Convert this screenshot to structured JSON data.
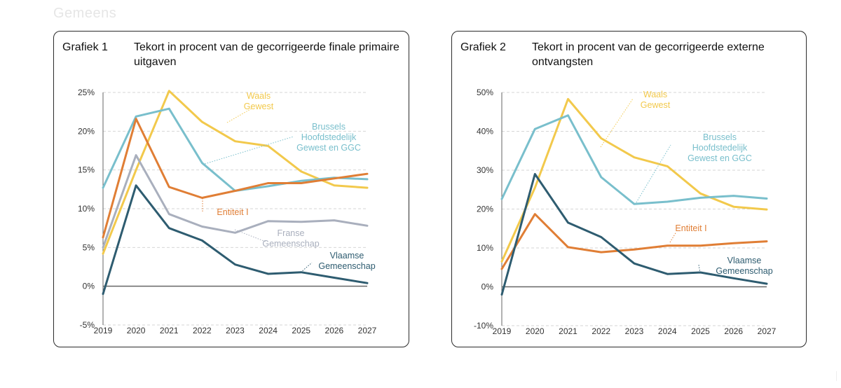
{
  "page": {
    "header_faded": "Gemeens"
  },
  "chart_data": [
    {
      "type": "line",
      "label": "Grafiek 1",
      "title": "Tekort in procent van de gecorrigeerde finale primaire uitgaven",
      "x": [
        "2019",
        "2020",
        "2021",
        "2022",
        "2023",
        "2024",
        "2025",
        "2026",
        "2027"
      ],
      "ylim": [
        -5,
        25
      ],
      "yticks": [
        -5,
        0,
        5,
        10,
        15,
        20,
        25
      ],
      "ytick_labels": [
        "-5%",
        "0%",
        "5%",
        "10%",
        "15%",
        "20%",
        "25%"
      ],
      "grid": true,
      "series": [
        {
          "name": "Waals Gewest",
          "label_lines": [
            "Waals",
            "Gewest"
          ],
          "color": "#f2c94c",
          "values": [
            4.2,
            15.0,
            25.2,
            21.2,
            18.7,
            18.1,
            14.8,
            13.0,
            12.7
          ]
        },
        {
          "name": "Brussels Hoofdstedelijk Gewest en GGC",
          "label_lines": [
            "Brussels",
            "Hoofdstedelijk",
            "Gewest en GGC"
          ],
          "color": "#79bfcc",
          "values": [
            12.7,
            21.9,
            22.9,
            15.9,
            12.3,
            12.9,
            13.6,
            14.0,
            13.8
          ]
        },
        {
          "name": "Entiteit I",
          "label_lines": [
            "Entiteit I"
          ],
          "color": "#e07e35",
          "values": [
            6.3,
            21.6,
            12.8,
            11.4,
            12.3,
            13.3,
            13.3,
            13.9,
            14.5
          ]
        },
        {
          "name": "Franse Gemeenschap",
          "label_lines": [
            "Franse",
            "Gemeenschap"
          ],
          "color": "#a9afbd",
          "values": [
            5.0,
            16.9,
            9.3,
            7.7,
            6.9,
            8.4,
            8.3,
            8.5,
            7.8
          ]
        },
        {
          "name": "Vlaamse Gemeenschap",
          "label_lines": [
            "Vlaamse",
            "Gemeenschap"
          ],
          "color": "#2e5c70",
          "values": [
            -1.0,
            13.0,
            7.5,
            5.9,
            2.8,
            1.6,
            1.8,
            1.1,
            0.4
          ]
        }
      ]
    },
    {
      "type": "line",
      "label": "Grafiek 2",
      "title": "Tekort in procent van de gecorrigeerde externe ontvangsten",
      "x": [
        "2019",
        "2020",
        "2021",
        "2022",
        "2023",
        "2024",
        "2025",
        "2026",
        "2027"
      ],
      "ylim": [
        -10,
        50
      ],
      "yticks": [
        -10,
        0,
        10,
        20,
        30,
        40,
        50
      ],
      "ytick_labels": [
        "-10%",
        "0%",
        "10%",
        "20%",
        "30%",
        "40%",
        "50%"
      ],
      "grid": true,
      "series": [
        {
          "name": "Waals Gewest",
          "label_lines": [
            "Waals",
            "Gewest"
          ],
          "color": "#f2c94c",
          "values": [
            6.5,
            25.5,
            48.3,
            38.2,
            33.3,
            31.0,
            24.0,
            20.6,
            19.9
          ]
        },
        {
          "name": "Brussels Hoofdstedelijk Gewest en GGC",
          "label_lines": [
            "Brussels",
            "Hoofdstedelijk",
            "Gewest en GGC"
          ],
          "color": "#79bfcc",
          "values": [
            22.6,
            40.6,
            44.1,
            28.2,
            21.3,
            21.9,
            22.9,
            23.4,
            22.7
          ]
        },
        {
          "name": "Entiteit I",
          "label_lines": [
            "Entiteit I"
          ],
          "color": "#e07e35",
          "values": [
            4.6,
            18.7,
            10.2,
            8.9,
            9.6,
            10.6,
            10.6,
            11.2,
            11.7
          ]
        },
        {
          "name": "Vlaamse Gemeenschap",
          "label_lines": [
            "Vlaamse",
            "Gemeenschap"
          ],
          "color": "#2e5c70",
          "values": [
            -2.0,
            29.0,
            16.5,
            12.8,
            6.0,
            3.3,
            3.7,
            2.2,
            0.8
          ]
        }
      ]
    }
  ]
}
